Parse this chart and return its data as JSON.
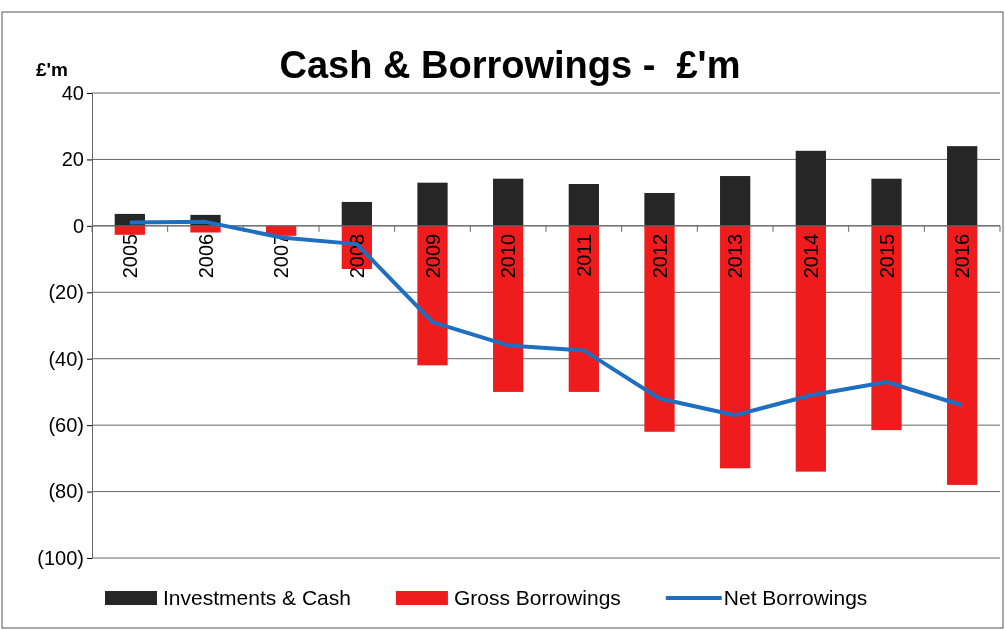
{
  "chart_data": {
    "type": "bar",
    "title": "Cash & Borrowings -  £'m",
    "ylabel": "£'m",
    "stacked": true,
    "categories": [
      "2005",
      "2006",
      "2007",
      "2008",
      "2009",
      "2010",
      "2011",
      "2012",
      "2013",
      "2014",
      "2015",
      "2016"
    ],
    "series": [
      {
        "name": "Investments & Cash",
        "color": "#262626",
        "values": [
          3.6,
          3.3,
          0,
          7.2,
          13,
          14.2,
          12.6,
          9.9,
          15,
          22.6,
          14.2,
          24
        ]
      },
      {
        "name": "Gross Borrowings",
        "color": "#ee1c1c",
        "values": [
          -2.7,
          -2,
          -3,
          -13,
          -42,
          -50,
          -50,
          -62,
          -73,
          -74,
          -61.5,
          -78
        ]
      },
      {
        "name": "Net Borrowings",
        "type": "line",
        "color": "#1f6fc0",
        "values": [
          1,
          1.2,
          -3.5,
          -5.5,
          -29,
          -36,
          -37.5,
          -52,
          -57,
          -51,
          -47,
          -54
        ]
      }
    ],
    "ylim": [
      -100,
      40
    ],
    "yticks": [
      {
        "value": -100,
        "label": "(100)"
      },
      {
        "value": -80,
        "label": "(80)"
      },
      {
        "value": -60,
        "label": "(60)"
      },
      {
        "value": -40,
        "label": "(40)"
      },
      {
        "value": -20,
        "label": "(20)"
      },
      0,
      20,
      40
    ],
    "grid": "y",
    "legend": "bottom",
    "marker": "none",
    "line_style": "solid"
  }
}
